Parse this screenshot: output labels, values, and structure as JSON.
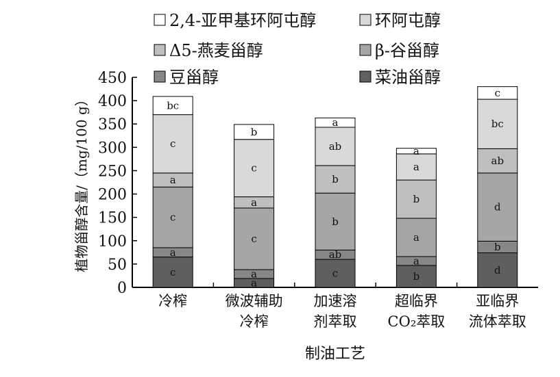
{
  "chart_data": {
    "type": "bar",
    "stacked": true,
    "title": "",
    "xlabel": "制油工艺",
    "ylabel": "植物甾醇含量/（mg/100 g）",
    "ylim": [
      0,
      450
    ],
    "yticks": [
      0,
      50,
      100,
      150,
      200,
      250,
      300,
      350,
      400,
      450
    ],
    "grid": false,
    "legend_position": "top",
    "categories": [
      [
        "冷榨"
      ],
      [
        "微波辅助",
        "冷榨"
      ],
      [
        "加速溶",
        "剂萃取"
      ],
      [
        "超临界",
        "CO₂萃取"
      ],
      [
        "亚临界",
        "流体萃取"
      ]
    ],
    "series": [
      {
        "name": "菜油甾醇",
        "color": "#5f5f5f",
        "values": [
          65,
          19,
          60,
          47,
          74
        ],
        "labels": [
          "c",
          "a",
          "c",
          "b",
          "d"
        ]
      },
      {
        "name": "豆甾醇",
        "color": "#878787",
        "values": [
          20,
          19,
          20,
          19,
          25
        ],
        "labels": [
          "a",
          "a",
          "ab",
          "a",
          "b"
        ]
      },
      {
        "name": "β-谷甾醇",
        "color": "#a6a6a6",
        "values": [
          130,
          132,
          122,
          82,
          146
        ],
        "labels": [
          "c",
          "c",
          "b",
          "a",
          "d"
        ]
      },
      {
        "name": "Δ5-燕麦甾醇",
        "color": "#bfbfbf",
        "values": [
          30,
          24,
          59,
          82,
          52
        ],
        "labels": [
          "a",
          "a",
          "b",
          "b",
          "ab"
        ]
      },
      {
        "name": "环阿屯醇",
        "color": "#d9d9d9",
        "values": [
          125,
          123,
          82,
          56,
          106
        ],
        "labels": [
          "c",
          "c",
          "ab",
          "a",
          "bc"
        ]
      },
      {
        "name": "2,4-亚甲基环阿屯醇",
        "color": "#ffffff",
        "values": [
          39,
          32,
          20,
          12,
          27
        ],
        "labels": [
          "bc",
          "b",
          "a",
          "a",
          "c"
        ]
      }
    ],
    "legend_order": [
      "2,4-亚甲基环阿屯醇",
      "环阿屯醇",
      "Δ5-燕麦甾醇",
      "β-谷甾醇",
      "豆甾醇",
      "菜油甾醇"
    ]
  }
}
